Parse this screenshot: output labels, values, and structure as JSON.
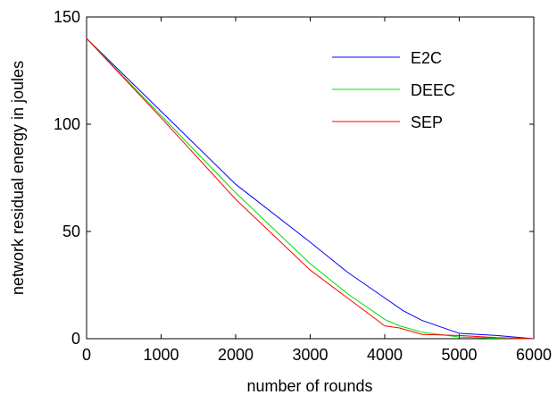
{
  "chart_data": {
    "type": "line",
    "title": "",
    "xlabel": "number of rounds",
    "ylabel": "network residual energy in joules",
    "xlim": [
      0,
      6000
    ],
    "ylim": [
      0,
      150
    ],
    "xticks": [
      0,
      1000,
      2000,
      3000,
      4000,
      5000,
      6000
    ],
    "yticks": [
      0,
      50,
      100,
      150
    ],
    "grid": false,
    "legend_position": "top-right",
    "series": [
      {
        "name": "E2C",
        "color": "#0000ff",
        "x": [
          0,
          1000,
          2000,
          3000,
          3500,
          4000,
          4250,
          4500,
          5000,
          5500,
          6000
        ],
        "y": [
          140,
          106,
          72,
          45,
          31,
          19,
          13,
          8.5,
          2.5,
          1.5,
          0
        ]
      },
      {
        "name": "DEEC",
        "color": "#00dd00",
        "x": [
          0,
          1000,
          2000,
          3000,
          3500,
          4000,
          4200,
          4500,
          5000,
          5500,
          6000
        ],
        "y": [
          140,
          104,
          68,
          35,
          21,
          9,
          6,
          3,
          0.8,
          0.2,
          0
        ]
      },
      {
        "name": "SEP",
        "color": "#ff0000",
        "x": [
          0,
          1000,
          2000,
          3000,
          3500,
          4000,
          4200,
          4500,
          5000,
          5500,
          6000
        ],
        "y": [
          140,
          103,
          65,
          32,
          19,
          6,
          5,
          2,
          1.5,
          0.5,
          0
        ]
      }
    ]
  }
}
